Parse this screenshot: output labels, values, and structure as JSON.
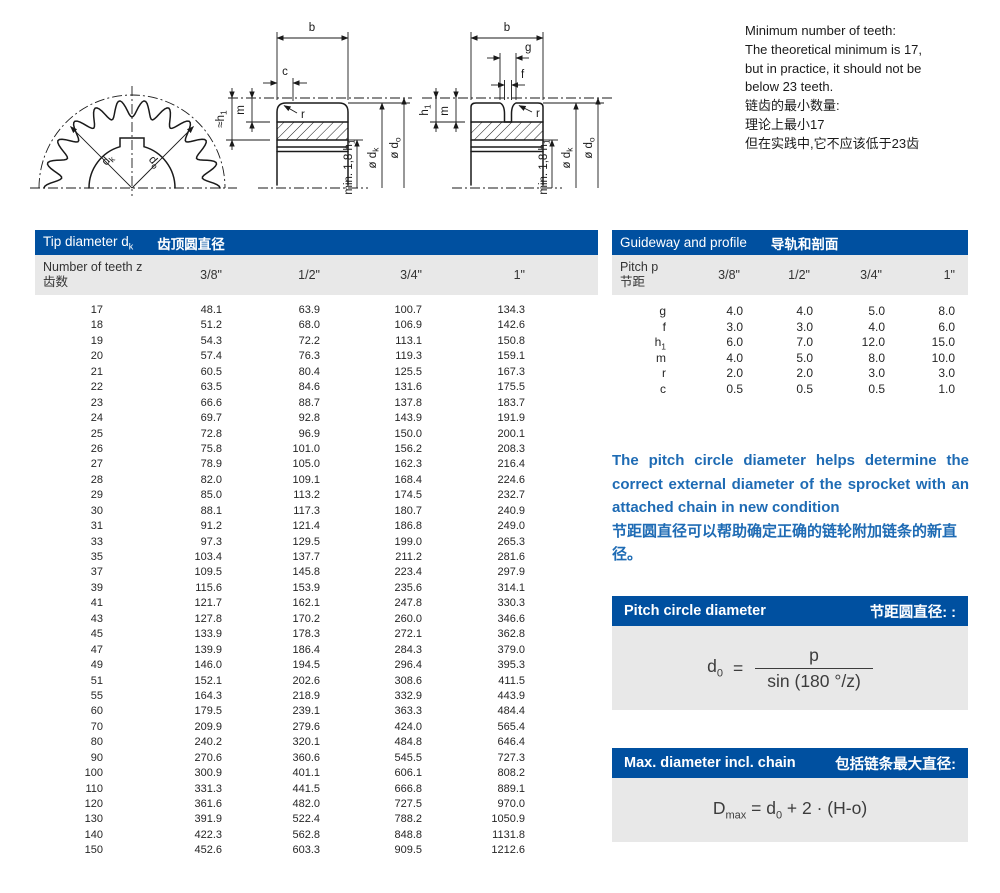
{
  "colors": {
    "header_blue": "#0050A0",
    "panel_gray": "#E8E8E8",
    "text_blue": "#1E6BB4"
  },
  "note": {
    "lines": [
      "Minimum number of teeth:",
      "The theoretical minimum is 17,",
      "but in practice, it should not be",
      "below 23 teeth.",
      "链齿的最小数量:",
      "理论上最小17",
      "但在实践中,它不应该低于23齿"
    ]
  },
  "tip_table": {
    "title_en": "Tip diameter d",
    "title_sub": "k",
    "title_zh": "齿顶圆直径",
    "label_en": "Number of teeth z",
    "label_zh": "齿数",
    "columns": [
      "3/8\"",
      "1/2\"",
      "3/4\"",
      "1\""
    ],
    "rows": [
      [
        "17",
        "48.1",
        "63.9",
        "100.7",
        "134.3"
      ],
      [
        "18",
        "51.2",
        "68.0",
        "106.9",
        "142.6"
      ],
      [
        "19",
        "54.3",
        "72.2",
        "113.1",
        "150.8"
      ],
      [
        "20",
        "57.4",
        "76.3",
        "119.3",
        "159.1"
      ],
      [
        "21",
        "60.5",
        "80.4",
        "125.5",
        "167.3"
      ],
      [
        "22",
        "63.5",
        "84.6",
        "131.6",
        "175.5"
      ],
      [
        "23",
        "66.6",
        "88.7",
        "137.8",
        "183.7"
      ],
      [
        "24",
        "69.7",
        "92.8",
        "143.9",
        "191.9"
      ],
      [
        "25",
        "72.8",
        "96.9",
        "150.0",
        "200.1"
      ],
      [
        "26",
        "75.8",
        "101.0",
        "156.2",
        "208.3"
      ],
      [
        "27",
        "78.9",
        "105.0",
        "162.3",
        "216.4"
      ],
      [
        "28",
        "82.0",
        "109.1",
        "168.4",
        "224.6"
      ],
      [
        "29",
        "85.0",
        "113.2",
        "174.5",
        "232.7"
      ],
      [
        "30",
        "88.1",
        "117.3",
        "180.7",
        "240.9"
      ],
      [
        "31",
        "91.2",
        "121.4",
        "186.8",
        "249.0"
      ],
      [
        "33",
        "97.3",
        "129.5",
        "199.0",
        "265.3"
      ],
      [
        "35",
        "103.4",
        "137.7",
        "211.2",
        "281.6"
      ],
      [
        "37",
        "109.5",
        "145.8",
        "223.4",
        "297.9"
      ],
      [
        "39",
        "115.6",
        "153.9",
        "235.6",
        "314.1"
      ],
      [
        "41",
        "121.7",
        "162.1",
        "247.8",
        "330.3"
      ],
      [
        "43",
        "127.8",
        "170.2",
        "260.0",
        "346.6"
      ],
      [
        "45",
        "133.9",
        "178.3",
        "272.1",
        "362.8"
      ],
      [
        "47",
        "139.9",
        "186.4",
        "284.3",
        "379.0"
      ],
      [
        "49",
        "146.0",
        "194.5",
        "296.4",
        "395.3"
      ],
      [
        "51",
        "152.1",
        "202.6",
        "308.6",
        "411.5"
      ],
      [
        "55",
        "164.3",
        "218.9",
        "332.9",
        "443.9"
      ],
      [
        "60",
        "179.5",
        "239.1",
        "363.3",
        "484.4"
      ],
      [
        "70",
        "209.9",
        "279.6",
        "424.0",
        "565.4"
      ],
      [
        "80",
        "240.2",
        "320.1",
        "484.8",
        "646.4"
      ],
      [
        "90",
        "270.6",
        "360.6",
        "545.5",
        "727.3"
      ],
      [
        "100",
        "300.9",
        "401.1",
        "606.1",
        "808.2"
      ],
      [
        "110",
        "331.3",
        "441.5",
        "666.8",
        "889.1"
      ],
      [
        "120",
        "361.6",
        "482.0",
        "727.5",
        "970.0"
      ],
      [
        "130",
        "391.9",
        "522.4",
        "788.2",
        "1050.9"
      ],
      [
        "140",
        "422.3",
        "562.8",
        "848.8",
        "1131.8"
      ],
      [
        "150",
        "452.6",
        "603.3",
        "909.5",
        "1212.6"
      ]
    ]
  },
  "guideway_table": {
    "title_en": "Guideway and profile",
    "title_zh": "导轨和剖面",
    "label_en": "Pitch p",
    "label_zh": "节距",
    "columns": [
      "3/8\"",
      "1/2\"",
      "3/4\"",
      "1\""
    ],
    "rows": [
      {
        "p": "g",
        "sub": "",
        "values": [
          "4.0",
          "4.0",
          "5.0",
          "8.0"
        ]
      },
      {
        "p": "f",
        "sub": "",
        "values": [
          "3.0",
          "3.0",
          "4.0",
          "6.0"
        ]
      },
      {
        "p": "h",
        "sub": "1",
        "values": [
          "6.0",
          "7.0",
          "12.0",
          "15.0"
        ]
      },
      {
        "p": "m",
        "sub": "",
        "values": [
          "4.0",
          "5.0",
          "8.0",
          "10.0"
        ]
      },
      {
        "p": "r",
        "sub": "",
        "values": [
          "2.0",
          "2.0",
          "3.0",
          "3.0"
        ]
      },
      {
        "p": "c",
        "sub": "",
        "values": [
          "0.5",
          "0.5",
          "0.5",
          "1.0"
        ]
      }
    ]
  },
  "paragraph": {
    "en": "The pitch circle diameter helps determine the correct external diameter of the sprocket with an attached chain in new condition",
    "zh": "节距圆直径可以帮助确定正确的链轮附加链条的新直径。"
  },
  "formula1": {
    "title_en": "Pitch circle diameter",
    "title_zh": "节距圆直径: :",
    "lhs_base": "d",
    "lhs_sub": "0",
    "eq": "=",
    "numerator": "p",
    "denominator": "sin (180 °/z)"
  },
  "formula2": {
    "title_en": "Max. diameter incl. chain",
    "title_zh": "包括链条最大直径:",
    "p1": "D",
    "s1": "max",
    "p2": " = d",
    "s2": "0",
    "p3": " + 2 · (H-o)"
  },
  "diagrams": {
    "sprocket": {
      "dk_base": "d",
      "dk_sub": "k",
      "do_base": "d",
      "do_sub": "o"
    },
    "section_b": {
      "b": "b",
      "c": "c",
      "m": "m",
      "r": "r",
      "h1_base": "≈h",
      "h1_sub": "1",
      "minh_base": "min. 1,8 h",
      "minh_sub": "1",
      "dk_base": "ø d",
      "dk_sub": "k",
      "d0_base": "ø d",
      "d0_sub": "o"
    },
    "section_guide": {
      "b": "b",
      "g": "g",
      "f": "f",
      "m": "m",
      "r": "r",
      "h1_base": "h",
      "h1_sub": "1",
      "minh_base": "min. 1,8 h",
      "minh_sub": "1",
      "dk_base": "ø d",
      "dk_sub": "k",
      "d0_base": "ø d",
      "d0_sub": "o"
    }
  }
}
